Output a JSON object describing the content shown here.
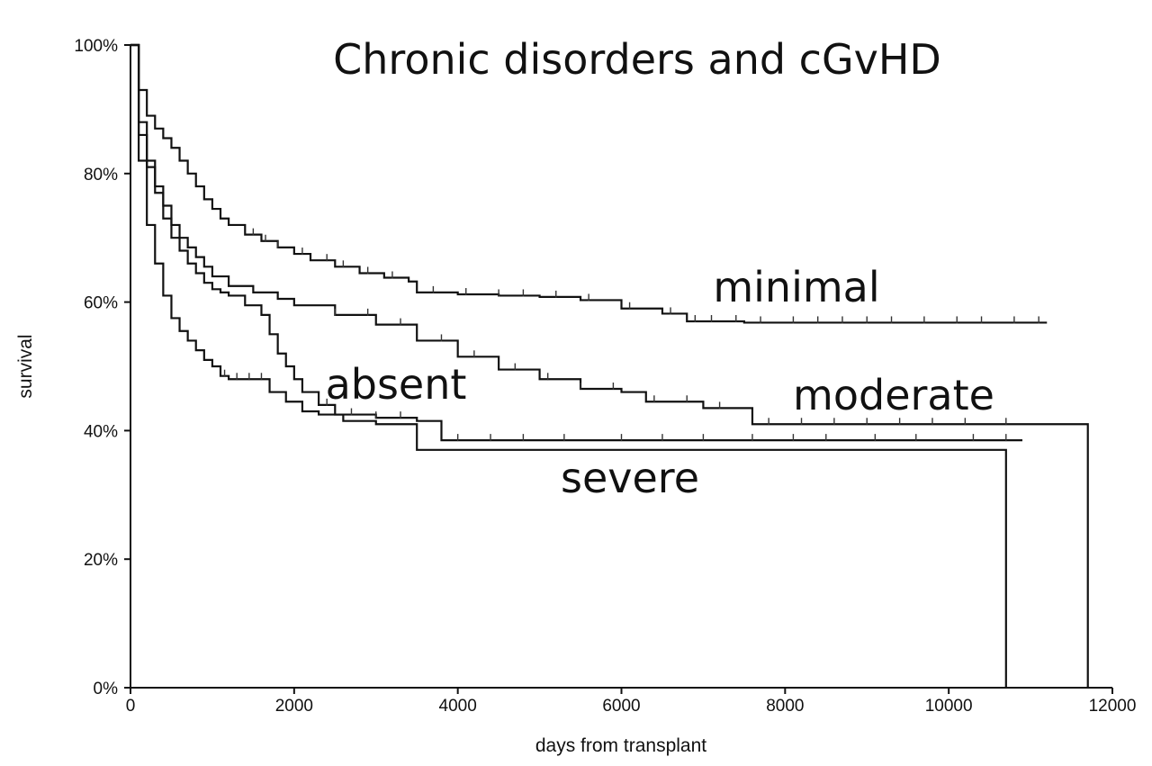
{
  "chart_data": {
    "type": "line",
    "title": "Chronic disorders and cGvHD",
    "xlabel": "days from transplant",
    "ylabel": "survival",
    "xlim": [
      0,
      12000
    ],
    "ylim": [
      0,
      100
    ],
    "xticks": [
      0,
      2000,
      4000,
      6000,
      8000,
      10000,
      12000
    ],
    "xtick_labels": [
      "0",
      "2000",
      "4000",
      "6000",
      "8000",
      "10000",
      "12000"
    ],
    "yticks": [
      0,
      20,
      40,
      60,
      80,
      100
    ],
    "ytick_labels": [
      "0%",
      "20%",
      "40%",
      "60%",
      "80%",
      "100%"
    ],
    "grid": false,
    "series": [
      {
        "name": "minimal",
        "x": [
          0,
          100,
          200,
          300,
          400,
          500,
          600,
          700,
          800,
          900,
          1000,
          1100,
          1200,
          1400,
          1600,
          1800,
          2000,
          2200,
          2500,
          2800,
          3100,
          3400,
          3500,
          4000,
          4500,
          5000,
          5500,
          6000,
          6500,
          6800,
          7500,
          8000,
          9000,
          10000,
          11000,
          11200
        ],
        "y": [
          100,
          93,
          89,
          87,
          85.5,
          84,
          82,
          80,
          78,
          76,
          74.5,
          73,
          72,
          70.5,
          69.5,
          68.5,
          67.5,
          66.5,
          65.5,
          64.5,
          63.8,
          63.2,
          61.5,
          61.2,
          61,
          60.8,
          60.3,
          59,
          58.2,
          57,
          56.8,
          56.8,
          56.8,
          56.8,
          56.8,
          56.8
        ],
        "censor_x": [
          1500,
          1650,
          1800,
          2100,
          2400,
          2600,
          2900,
          3200,
          3700,
          4100,
          4500,
          4800,
          5200,
          5600,
          6100,
          6600,
          6900,
          7100,
          7400,
          7700,
          8100,
          8400,
          8700,
          9000,
          9300,
          9700,
          10100,
          10400,
          10800,
          11100
        ]
      },
      {
        "name": "moderate",
        "x": [
          0,
          100,
          200,
          300,
          400,
          500,
          600,
          700,
          800,
          900,
          1000,
          1200,
          1500,
          1800,
          2000,
          2500,
          3000,
          3500,
          4000,
          4500,
          5000,
          5500,
          6000,
          6300,
          7000,
          7500,
          7600,
          9000,
          10000,
          11000,
          11700
        ],
        "y": [
          100,
          86,
          81,
          78,
          75,
          72,
          70,
          68.5,
          67,
          65.5,
          64,
          62.5,
          61.5,
          60.5,
          59.5,
          58,
          56.5,
          54,
          51.5,
          49.5,
          48,
          46.5,
          46,
          44.5,
          43.5,
          43.5,
          41,
          41,
          41,
          41,
          41
        ],
        "drop_at_end": {
          "x": 11700,
          "y": 0
        },
        "censor_x": [
          2500,
          2900,
          3300,
          3800,
          4200,
          4700,
          5100,
          5500,
          5900,
          6400,
          6800,
          7200,
          7800,
          8200,
          8600,
          9000,
          9400,
          9800,
          10200,
          10700
        ]
      },
      {
        "name": "absent",
        "x": [
          0,
          100,
          200,
          300,
          400,
          500,
          600,
          700,
          800,
          900,
          1000,
          1100,
          1200,
          1400,
          1600,
          1700,
          1800,
          1900,
          2000,
          2100,
          2300,
          2500,
          3000,
          3500,
          3800,
          5000,
          6000,
          7000,
          8000,
          9000,
          10000,
          10900
        ],
        "y": [
          100,
          88,
          82,
          77,
          73,
          70,
          68,
          66,
          64.5,
          63,
          62,
          61.5,
          61,
          59.5,
          58,
          55,
          52,
          50,
          48,
          46,
          44,
          42.5,
          42,
          41.5,
          38.5,
          38.5,
          38.5,
          38.5,
          38.5,
          38.5,
          38.5,
          38.5
        ],
        "censor_x": [
          2400,
          2700,
          3000,
          3300,
          4000,
          4400,
          4800,
          5300,
          6000,
          6500,
          7000,
          7600,
          8100,
          8500,
          9100,
          9600,
          10300,
          10700
        ]
      },
      {
        "name": "severe",
        "x": [
          0,
          100,
          200,
          300,
          400,
          500,
          600,
          700,
          800,
          900,
          1000,
          1100,
          1200,
          1500,
          1700,
          1900,
          2100,
          2300,
          2600,
          3000,
          3400,
          3500,
          5000,
          7000,
          9000,
          10700
        ],
        "y": [
          100,
          82,
          72,
          66,
          61,
          57.5,
          55.5,
          54,
          52.5,
          51,
          50,
          48.5,
          48,
          48,
          46,
          44.5,
          43,
          42.5,
          41.5,
          41,
          41,
          37,
          37,
          37,
          37,
          37
        ],
        "drop_at_end": {
          "x": 10700,
          "y": 0
        },
        "censor_x": [
          1150,
          1300,
          1450,
          1600
        ]
      }
    ]
  }
}
